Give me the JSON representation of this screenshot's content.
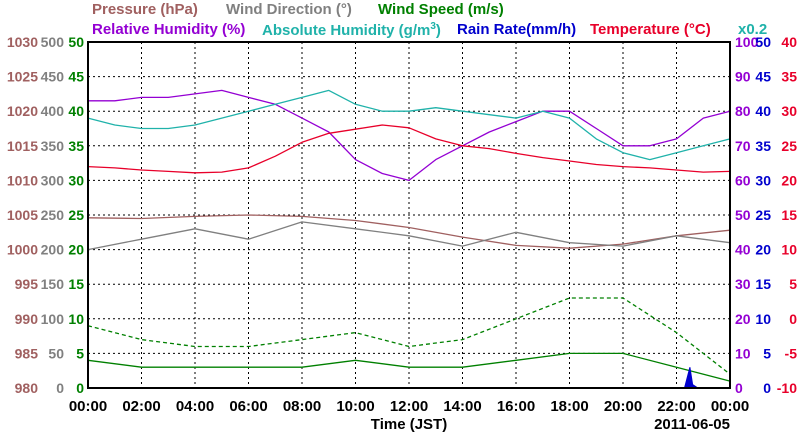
{
  "legend": {
    "pressure": "Pressure (hPa)",
    "wind_direction": "Wind Direction (°)",
    "wind_speed": "Wind Speed (m/s)",
    "relative_humidity": "Relative Humidity (%)",
    "absolute_humidity": "Absolute Humidity (g/m",
    "absolute_humidity_sup": "3",
    "absolute_humidity_close": ")",
    "rain_rate": "Rain Rate(mm/h)",
    "temperature": "Temperature (°C)",
    "rain_scale_note": "x0.2"
  },
  "colors": {
    "pressure": "#a06060",
    "wind_direction": "#808080",
    "wind_speed": "#008000",
    "relative_humidity": "#9400d3",
    "absolute_humidity": "#20b2aa",
    "rain_rate": "#0000cd",
    "temperature": "#e8002a"
  },
  "chart_data": {
    "type": "line",
    "xlabel": "Time (JST)",
    "date": "2011-06-05",
    "x_ticks": [
      "00:00",
      "02:00",
      "04:00",
      "06:00",
      "08:00",
      "10:00",
      "12:00",
      "14:00",
      "16:00",
      "18:00",
      "20:00",
      "22:00",
      "00:00"
    ],
    "xlim_hours": [
      0,
      24
    ],
    "grid": true,
    "axes": {
      "pressure": {
        "ticks": [
          "1030",
          "1025",
          "1020",
          "1015",
          "1010",
          "1005",
          "1000",
          "995",
          "990",
          "985",
          "980"
        ],
        "range": [
          980,
          1030
        ]
      },
      "wind_direction": {
        "ticks": [
          "500",
          "450",
          "400",
          "350",
          "300",
          "250",
          "200",
          "150",
          "100",
          "50",
          "0"
        ],
        "range": [
          0,
          500
        ]
      },
      "wind_speed": {
        "ticks": [
          "50",
          "45",
          "40",
          "35",
          "30",
          "25",
          "20",
          "15",
          "10",
          "5",
          "0"
        ],
        "range": [
          0,
          50
        ]
      },
      "relative_humidity": {
        "ticks": [
          "100",
          "90",
          "80",
          "70",
          "60",
          "50",
          "40",
          "30",
          "20",
          "10",
          "0"
        ],
        "range": [
          0,
          100
        ]
      },
      "rain_rate": {
        "ticks": [
          "50",
          "45",
          "40",
          "35",
          "30",
          "25",
          "20",
          "15",
          "10",
          "5",
          "0"
        ],
        "range": [
          0,
          50
        ]
      },
      "temperature": {
        "ticks": [
          "40",
          "35",
          "30",
          "25",
          "20",
          "15",
          "10",
          "5",
          "0",
          "-5",
          "-10"
        ],
        "range": [
          -10,
          40
        ]
      }
    },
    "series": [
      {
        "name": "Pressure (hPa)",
        "axis": "pressure",
        "x": [
          0,
          2,
          4,
          6,
          8,
          10,
          12,
          14,
          16,
          18,
          20,
          22,
          24
        ],
        "values": [
          1004.6,
          1004.5,
          1004.8,
          1005.0,
          1004.8,
          1004.2,
          1003.2,
          1001.8,
          1000.6,
          1000.2,
          1000.8,
          1002.0,
          1002.8
        ]
      },
      {
        "name": "Wind Direction (°)",
        "axis": "wind_direction",
        "x": [
          0,
          2,
          4,
          6,
          8,
          10,
          12,
          14,
          16,
          18,
          20,
          22,
          24
        ],
        "values": [
          200,
          215,
          230,
          215,
          240,
          230,
          220,
          205,
          225,
          210,
          205,
          220,
          210
        ]
      },
      {
        "name": "Wind Speed (m/s)",
        "axis": "wind_speed",
        "style": "solid",
        "x": [
          0,
          2,
          4,
          6,
          8,
          10,
          12,
          14,
          16,
          18,
          20,
          22,
          24
        ],
        "values": [
          4,
          3,
          3,
          3,
          3,
          4,
          3,
          3,
          4,
          5,
          5,
          3,
          1
        ]
      },
      {
        "name": "Wind Speed gust (m/s)",
        "axis": "wind_speed",
        "style": "dashed",
        "x": [
          0,
          2,
          4,
          6,
          8,
          10,
          12,
          14,
          16,
          18,
          20,
          22,
          24
        ],
        "values": [
          9,
          7,
          6,
          6,
          7,
          8,
          6,
          7,
          10,
          13,
          13,
          8,
          2
        ]
      },
      {
        "name": "Relative Humidity (%)",
        "axis": "relative_humidity",
        "x": [
          0,
          1,
          2,
          3,
          4,
          5,
          6,
          7,
          8,
          9,
          10,
          11,
          12,
          13,
          14,
          15,
          16,
          17,
          18,
          19,
          20,
          21,
          22,
          23,
          24
        ],
        "values": [
          83,
          83,
          84,
          84,
          85,
          86,
          84,
          82,
          78,
          74,
          66,
          62,
          60,
          66,
          70,
          74,
          77,
          80,
          80,
          75,
          70,
          70,
          72,
          78,
          80
        ]
      },
      {
        "name": "Absolute Humidity (g/m3)",
        "axis": "relative_humidity",
        "x": [
          0,
          1,
          2,
          3,
          4,
          5,
          6,
          7,
          8,
          9,
          10,
          11,
          12,
          13,
          14,
          15,
          16,
          17,
          18,
          19,
          20,
          21,
          22,
          23,
          24
        ],
        "values": [
          78,
          76,
          75,
          75,
          76,
          78,
          80,
          82,
          84,
          86,
          82,
          80,
          80,
          81,
          80,
          79,
          78,
          80,
          78,
          72,
          68,
          66,
          68,
          70,
          72
        ]
      },
      {
        "name": "Temperature (°C)",
        "axis": "temperature",
        "x": [
          0,
          1,
          2,
          3,
          4,
          5,
          6,
          7,
          8,
          9,
          10,
          11,
          12,
          13,
          14,
          15,
          16,
          17,
          18,
          19,
          20,
          21,
          22,
          23,
          24
        ],
        "values": [
          22,
          21.8,
          21.5,
          21.3,
          21.1,
          21.2,
          21.8,
          23.5,
          25.5,
          26.8,
          27.4,
          28,
          27.6,
          26,
          25,
          24.6,
          23.9,
          23.3,
          22.8,
          22.3,
          22,
          21.8,
          21.5,
          21.2,
          21.3
        ]
      },
      {
        "name": "Rain Rate(mm/h)",
        "axis": "rain_rate",
        "x": [
          0,
          22.3,
          22.5,
          22.6,
          22.8,
          24
        ],
        "values": [
          0,
          0,
          3,
          0.5,
          0,
          0
        ]
      }
    ]
  }
}
